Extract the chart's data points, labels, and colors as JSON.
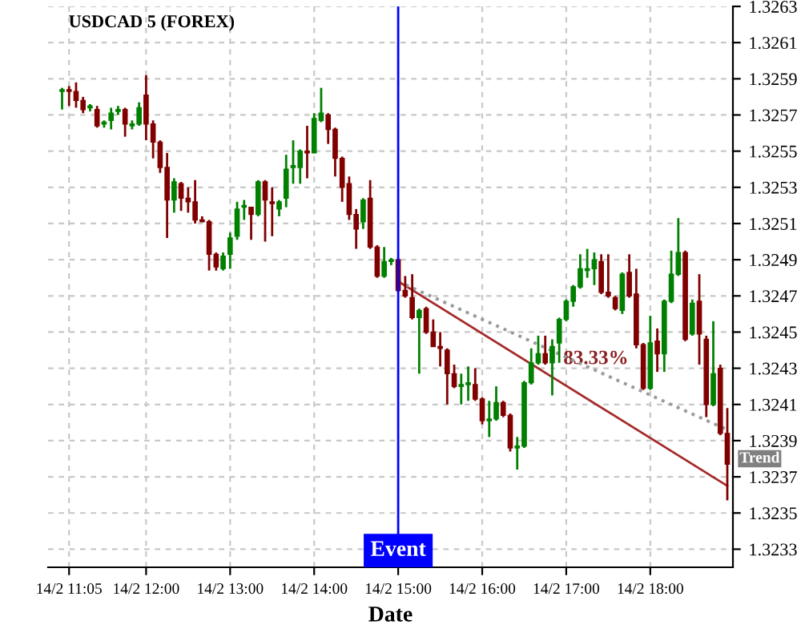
{
  "chart_data": {
    "type": "candlestick",
    "title": "USDCAD 5 (FOREX)",
    "xlabel": "Date",
    "categories": [
      null,
      "14/2 11:05",
      null,
      null,
      null,
      null,
      null,
      null,
      null,
      null,
      null,
      null,
      "14/2 12:00",
      null,
      null,
      null,
      null,
      null,
      null,
      null,
      null,
      null,
      null,
      null,
      "14/2 13:00",
      null,
      null,
      null,
      null,
      null,
      null,
      null,
      null,
      null,
      null,
      null,
      "14/2 14:00",
      null,
      null,
      null,
      null,
      null,
      null,
      null,
      null,
      null,
      null,
      null,
      "14/2 15:00",
      null,
      null,
      null,
      null,
      null,
      null,
      null,
      null,
      null,
      null,
      null,
      "14/2 16:00",
      null,
      null,
      null,
      null,
      null,
      null,
      null,
      null,
      null,
      null,
      null,
      "14/2 17:00",
      null,
      null,
      null,
      null,
      null,
      null,
      null,
      null,
      null,
      null,
      null,
      "14/2 18:00",
      null,
      null,
      null,
      null,
      null,
      null,
      null,
      null,
      null,
      null,
      null
    ],
    "ohlc": [
      [
        1.32583,
        1.32585,
        1.32573,
        1.32584
      ],
      [
        1.32584,
        1.32586,
        1.32575,
        1.32583
      ],
      [
        1.32583,
        1.32588,
        1.32574,
        1.32578
      ],
      [
        1.32578,
        1.3258,
        1.32571,
        1.32573
      ],
      [
        1.32574,
        1.32576,
        1.32572,
        1.32575
      ],
      [
        1.32573,
        1.32575,
        1.32563,
        1.32564
      ],
      [
        1.32565,
        1.32567,
        1.32563,
        1.32566
      ],
      [
        1.32567,
        1.32574,
        1.32562,
        1.32571
      ],
      [
        1.32572,
        1.32575,
        1.3257,
        1.32573
      ],
      [
        1.32573,
        1.32574,
        1.32558,
        1.32565
      ],
      [
        1.32564,
        1.32567,
        1.32562,
        1.32565
      ],
      [
        1.32565,
        1.32577,
        1.32564,
        1.32574
      ],
      [
        1.32581,
        1.32592,
        1.32556,
        1.32565
      ],
      [
        1.32565,
        1.32567,
        1.32546,
        1.32555
      ],
      [
        1.32555,
        1.32556,
        1.32538,
        1.32541
      ],
      [
        1.32541,
        1.32549,
        1.32502,
        1.32523
      ],
      [
        1.32523,
        1.32535,
        1.32516,
        1.32533
      ],
      [
        1.32532,
        1.32533,
        1.32517,
        1.32524
      ],
      [
        1.32524,
        1.3253,
        1.32516,
        1.32522
      ],
      [
        1.32522,
        1.32534,
        1.3251,
        1.32512
      ],
      [
        1.32512,
        1.32514,
        1.32511,
        1.32511
      ],
      [
        1.32511,
        1.32512,
        1.32484,
        1.32493
      ],
      [
        1.32493,
        1.32494,
        1.32484,
        1.32486
      ],
      [
        1.32485,
        1.32494,
        1.32484,
        1.32492
      ],
      [
        1.32493,
        1.32505,
        1.32485,
        1.32502
      ],
      [
        1.32503,
        1.32522,
        1.32501,
        1.32518
      ],
      [
        1.32519,
        1.32523,
        1.32512,
        1.3252
      ],
      [
        1.32519,
        1.32519,
        1.32501,
        1.32515
      ],
      [
        1.32515,
        1.32534,
        1.32514,
        1.32533
      ],
      [
        1.32533,
        1.32534,
        1.325,
        1.32523
      ],
      [
        1.32522,
        1.3253,
        1.32503,
        1.32521
      ],
      [
        1.32518,
        1.32523,
        1.32514,
        1.32522
      ],
      [
        1.32524,
        1.32548,
        1.32519,
        1.3254
      ],
      [
        1.32541,
        1.32556,
        1.32532,
        1.32542
      ],
      [
        1.32541,
        1.32551,
        1.32532,
        1.3255
      ],
      [
        1.3255,
        1.32564,
        1.32535,
        1.32549
      ],
      [
        1.32549,
        1.32571,
        1.32549,
        1.32568
      ],
      [
        1.32567,
        1.32585,
        1.32566,
        1.32571
      ],
      [
        1.3257,
        1.32571,
        1.32554,
        1.32562
      ],
      [
        1.32562,
        1.32563,
        1.32536,
        1.32546
      ],
      [
        1.32546,
        1.32547,
        1.32522,
        1.3253
      ],
      [
        1.32532,
        1.32536,
        1.32512,
        1.32515
      ],
      [
        1.32515,
        1.32518,
        1.32496,
        1.32507
      ],
      [
        1.32511,
        1.32524,
        1.32507,
        1.32523
      ],
      [
        1.32524,
        1.32534,
        1.32496,
        1.32497
      ],
      [
        1.32497,
        1.32498,
        1.3248,
        1.32481
      ],
      [
        1.32481,
        1.32497,
        1.3248,
        1.32489
      ],
      [
        1.32489,
        1.32491,
        1.32487,
        1.3249
      ],
      [
        1.3249,
        1.32491,
        1.32472,
        1.32473
      ],
      [
        1.32473,
        1.32481,
        1.32469,
        1.3247
      ],
      [
        1.32469,
        1.32482,
        1.32457,
        1.32458
      ],
      [
        1.32458,
        1.32463,
        1.32427,
        1.32462
      ],
      [
        1.32463,
        1.32464,
        1.32449,
        1.3245
      ],
      [
        1.3245,
        1.32457,
        1.32442,
        1.32442
      ],
      [
        1.32442,
        1.3245,
        1.32431,
        1.32441
      ],
      [
        1.3244,
        1.32441,
        1.3241,
        1.32427
      ],
      [
        1.32427,
        1.32432,
        1.32419,
        1.3242
      ],
      [
        1.3242,
        1.32427,
        1.3241,
        1.32421
      ],
      [
        1.32421,
        1.32431,
        1.32412,
        1.32422
      ],
      [
        1.32421,
        1.3243,
        1.32412,
        1.32413
      ],
      [
        1.32413,
        1.32414,
        1.32399,
        1.32401
      ],
      [
        1.32401,
        1.32412,
        1.32392,
        1.32402
      ],
      [
        1.32402,
        1.3242,
        1.32401,
        1.32411
      ],
      [
        1.32411,
        1.32412,
        1.32403,
        1.32404
      ],
      [
        1.32404,
        1.32405,
        1.32384,
        1.32386
      ],
      [
        1.32386,
        1.32392,
        1.32374,
        1.32387
      ],
      [
        1.32387,
        1.32423,
        1.32386,
        1.32422
      ],
      [
        1.32422,
        1.32441,
        1.32421,
        1.32433
      ],
      [
        1.32433,
        1.32448,
        1.32432,
        1.32438
      ],
      [
        1.32438,
        1.32448,
        1.32432,
        1.32433
      ],
      [
        1.32433,
        1.32446,
        1.32415,
        1.32442
      ],
      [
        1.32444,
        1.32458,
        1.32433,
        1.32457
      ],
      [
        1.32457,
        1.32468,
        1.32456,
        1.32467
      ],
      [
        1.32467,
        1.32476,
        1.32464,
        1.32475
      ],
      [
        1.32475,
        1.32493,
        1.32474,
        1.32485
      ],
      [
        1.32484,
        1.32496,
        1.3248,
        1.32485
      ],
      [
        1.32485,
        1.32494,
        1.32476,
        1.3249
      ],
      [
        1.32489,
        1.32493,
        1.32471,
        1.32472
      ],
      [
        1.32472,
        1.32493,
        1.32469,
        1.3247
      ],
      [
        1.32469,
        1.3247,
        1.32462,
        1.32463
      ],
      [
        1.32462,
        1.32483,
        1.3246,
        1.32482
      ],
      [
        1.32483,
        1.32493,
        1.32469,
        1.3247
      ],
      [
        1.32471,
        1.32485,
        1.32441,
        1.32443
      ],
      [
        1.32443,
        1.32444,
        1.32418,
        1.32419
      ],
      [
        1.32419,
        1.32459,
        1.32418,
        1.32444
      ],
      [
        1.32445,
        1.32452,
        1.32428,
        1.32438
      ],
      [
        1.32438,
        1.32468,
        1.32428,
        1.32467
      ],
      [
        1.32467,
        1.32495,
        1.32466,
        1.32482
      ],
      [
        1.32482,
        1.32513,
        1.32481,
        1.32494
      ],
      [
        1.32494,
        1.32495,
        1.32445,
        1.32446
      ],
      [
        1.32449,
        1.32468,
        1.32448,
        1.32466
      ],
      [
        1.32467,
        1.32482,
        1.32432,
        1.32449
      ],
      [
        1.32446,
        1.32448,
        1.32403,
        1.3241
      ],
      [
        1.3241,
        1.32456,
        1.32409,
        1.32427
      ],
      [
        1.3243,
        1.32432,
        1.32393,
        1.32394
      ],
      [
        1.32394,
        1.32408,
        1.32357,
        1.32377
      ]
    ],
    "colors": [
      "#008000",
      "#800000",
      "#800000",
      "#800000",
      "#008000",
      "#800000",
      "#008000",
      "#008000",
      "#008000",
      "#800000",
      "#008000",
      "#008000",
      "#800000",
      "#800000",
      "#800000",
      "#800000",
      "#008000",
      "#800000",
      "#800000",
      "#800000",
      "#800000",
      "#800000",
      "#800000",
      "#008000",
      "#008000",
      "#008000",
      "#008000",
      "#800000",
      "#008000",
      "#800000",
      "#800000",
      "#008000",
      "#008000",
      "#008000",
      "#008000",
      "#800000",
      "#008000",
      "#008000",
      "#800000",
      "#800000",
      "#800000",
      "#800000",
      "#800000",
      "#008000",
      "#800000",
      "#800000",
      "#008000",
      "#008000",
      "#800000",
      "#800000",
      "#800000",
      "#008000",
      "#800000",
      "#800000",
      "#800000",
      "#800000",
      "#800000",
      "#008000",
      "#008000",
      "#800000",
      "#800000",
      "#008000",
      "#008000",
      "#800000",
      "#800000",
      "#008000",
      "#008000",
      "#008000",
      "#008000",
      "#800000",
      "#008000",
      "#008000",
      "#008000",
      "#008000",
      "#008000",
      "#008000",
      "#008000",
      "#800000",
      "#800000",
      "#800000",
      "#008000",
      "#800000",
      "#800000",
      "#800000",
      "#008000",
      "#800000",
      "#008000",
      "#008000",
      "#008000",
      "#800000",
      "#008000",
      "#800000",
      "#800000",
      "#008000",
      "#800000",
      "#800000"
    ],
    "series": [
      {
        "type": "line",
        "color": "#a52a2a",
        "line_style": "solid",
        "values": [
          null,
          null,
          null,
          null,
          null,
          null,
          null,
          null,
          null,
          null,
          null,
          null,
          null,
          null,
          null,
          null,
          null,
          null,
          null,
          null,
          null,
          null,
          null,
          null,
          null,
          null,
          null,
          null,
          null,
          null,
          null,
          null,
          null,
          null,
          null,
          null,
          null,
          null,
          null,
          null,
          null,
          null,
          null,
          null,
          null,
          null,
          null,
          null,
          1.32478,
          null,
          null,
          null,
          null,
          null,
          null,
          null,
          null,
          null,
          null,
          null,
          null,
          null,
          null,
          null,
          null,
          null,
          null,
          null,
          null,
          null,
          null,
          null,
          null,
          null,
          null,
          null,
          null,
          null,
          null,
          null,
          null,
          null,
          null,
          null,
          null,
          null,
          null,
          null,
          null,
          null,
          null,
          null,
          null,
          null,
          null,
          1.32365
        ]
      },
      {
        "type": "line",
        "color": "#999999",
        "line_style": "dotted",
        "values": [
          null,
          null,
          null,
          null,
          null,
          null,
          null,
          null,
          null,
          null,
          null,
          null,
          null,
          null,
          null,
          null,
          null,
          null,
          null,
          null,
          null,
          null,
          null,
          null,
          null,
          null,
          null,
          null,
          null,
          null,
          null,
          null,
          null,
          null,
          null,
          null,
          null,
          null,
          null,
          null,
          null,
          null,
          null,
          null,
          null,
          null,
          null,
          null,
          1.32478,
          null,
          null,
          null,
          null,
          null,
          null,
          null,
          null,
          null,
          null,
          null,
          null,
          null,
          null,
          null,
          null,
          null,
          null,
          null,
          null,
          null,
          null,
          null,
          null,
          null,
          null,
          null,
          null,
          null,
          null,
          null,
          null,
          null,
          null,
          null,
          null,
          null,
          null,
          null,
          null,
          null,
          null,
          null,
          null,
          null,
          null,
          1.32396
        ]
      }
    ],
    "ref_lines": [
      {
        "axis": "x",
        "value": "14/2 15:00",
        "label": "Event",
        "color": "#0000ff"
      }
    ],
    "annotations": [
      "83.33%",
      "Trend"
    ],
    "ylim": [
      1.3232,
      1.3263
    ],
    "yticks": [
      1.3233,
      1.3235,
      1.3237,
      1.3239,
      1.3241,
      1.3243,
      1.3245,
      1.3247,
      1.3249,
      1.3251,
      1.3253,
      1.3255,
      1.3257,
      1.3259,
      1.3261,
      1.3263
    ],
    "grid": true
  }
}
